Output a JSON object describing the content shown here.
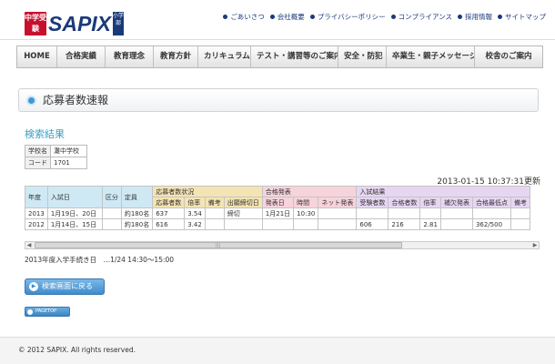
{
  "header": {
    "logo_badge": "中学受験",
    "logo_text": "SAPIX",
    "logo_sub": "小学部",
    "links": [
      "ごあいさつ",
      "会社概要",
      "プライバシーポリシー",
      "コンプライアンス",
      "採用情報",
      "サイトマップ"
    ]
  },
  "nav": [
    "HOME",
    "合格実績",
    "教育理念",
    "教育方針",
    "カリキュラム",
    "テスト・講習等のご案内",
    "安全・防犯",
    "卒業生・親子メッセージ",
    "校舎のご案内"
  ],
  "page": {
    "title": "応募者数速報",
    "result_heading": "検索結果"
  },
  "info": [
    {
      "label": "学校名",
      "value": "灘中学校"
    },
    {
      "label": "コード",
      "value": "1701"
    }
  ],
  "timestamp": "2013-01-15 10:37:31更新",
  "results": {
    "group_headers": {
      "status": "応募者数状況",
      "happyo": "合格発表",
      "kekka": "入試結果"
    },
    "base_headers": [
      "年度",
      "入試日",
      "区分",
      "定員"
    ],
    "status_headers": [
      "応募者数",
      "倍率",
      "備考",
      "出願締切日"
    ],
    "happyo_headers": [
      "発表日",
      "時間",
      "ネット発表"
    ],
    "kekka_headers": [
      "受験者数",
      "合格者数",
      "倍率",
      "補欠発表",
      "合格最低点",
      "備考"
    ],
    "rows": [
      [
        "2013",
        "1月19日、20日",
        "",
        "約180名",
        "637",
        "3.54",
        "",
        "締切",
        "1月21日",
        "10:30",
        "",
        "",
        "",
        "",
        "",
        "",
        ""
      ],
      [
        "2012",
        "1月14日、15日",
        "",
        "約180名",
        "616",
        "3.42",
        "",
        "",
        "",
        "",
        "",
        "606",
        "216",
        "2.81",
        "",
        "362/500",
        ""
      ]
    ]
  },
  "schedule": "2013年度入学手続き日　…1/24 14:30～15:00",
  "buttons": {
    "back": "検索画面に戻る",
    "pagetop": "PAGETOP"
  },
  "footer": {
    "copyright": "© 2012 SAPIX. All rights reserved."
  }
}
